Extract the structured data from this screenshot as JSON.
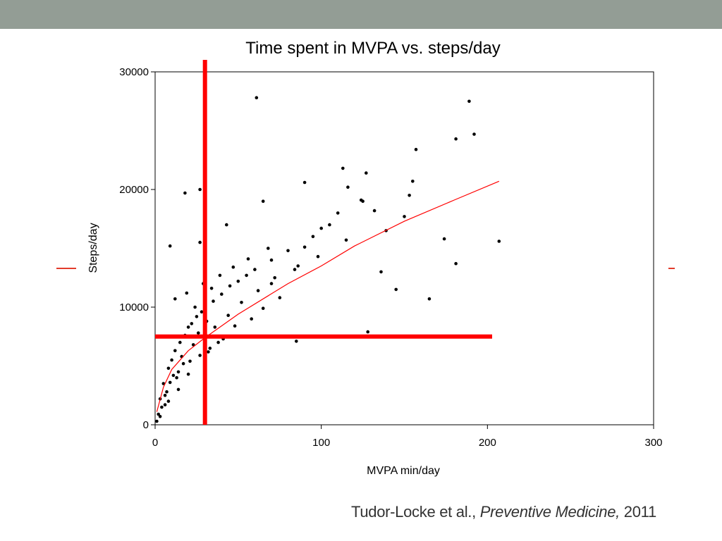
{
  "slide": {
    "colors": {
      "header_bar": "#939d95",
      "accent_line": "#e23c2c"
    },
    "citation": {
      "authors": "Tudor-Locke et al.,",
      "journal": "Preventive Medicine,",
      "year": "2011"
    }
  },
  "chart_data": {
    "type": "scatter",
    "title": "Time spent in MVPA vs. steps/day",
    "xlabel": "MVPA min/day",
    "ylabel": "Steps/day",
    "xlim": [
      0,
      300
    ],
    "ylim": [
      0,
      30000
    ],
    "x_ticks": [
      "0",
      "100",
      "200",
      "300"
    ],
    "y_ticks": [
      "0",
      "10000",
      "20000",
      "30000"
    ],
    "grid": false,
    "legend": "none",
    "colors": {
      "points": "#000000",
      "fit_curve": "#ff0000",
      "reference_lines": "#ff0000"
    },
    "reference_lines": {
      "x": 30,
      "y": 7500
    },
    "fit_curve": {
      "x": [
        1,
        5,
        10,
        20,
        30,
        50,
        80,
        100,
        120,
        150,
        180,
        207
      ],
      "y": [
        1100,
        3200,
        4700,
        6300,
        7400,
        9400,
        12000,
        13500,
        15200,
        17300,
        19100,
        20700
      ]
    },
    "points": {
      "x": [
        27,
        61,
        189,
        192,
        157,
        181,
        113,
        127,
        90,
        116,
        18,
        27,
        115,
        124,
        125,
        132,
        65,
        43,
        150,
        153,
        155,
        139,
        174,
        181,
        207,
        9,
        86,
        145,
        165,
        136,
        70,
        85,
        128,
        3,
        5,
        8,
        10,
        12,
        15,
        18,
        20,
        22,
        25,
        28,
        30,
        35,
        40,
        45,
        50,
        55,
        60,
        70,
        80,
        90,
        95,
        100,
        105,
        110,
        4,
        7,
        11,
        14,
        17,
        23,
        33,
        38,
        42,
        48,
        58,
        65,
        75,
        2,
        6,
        9,
        13,
        16,
        21,
        26,
        31,
        36,
        44,
        52,
        62,
        72,
        84,
        98,
        12,
        19,
        24,
        29,
        34,
        39,
        47,
        56,
        68,
        1,
        3,
        6,
        8,
        14,
        20,
        27,
        32,
        41
      ],
      "y": [
        20000,
        27800,
        27500,
        24700,
        23400,
        24300,
        21800,
        21400,
        20600,
        20200,
        19700,
        15500,
        15700,
        19100,
        19000,
        18200,
        19000,
        17000,
        17700,
        19500,
        20700,
        16500,
        15800,
        13700,
        15600,
        15200,
        13500,
        11500,
        10700,
        13000,
        12000,
        7100,
        7900,
        2200,
        3500,
        4800,
        5500,
        6300,
        7000,
        7600,
        8300,
        8600,
        9200,
        9600,
        9700,
        10500,
        11100,
        11800,
        12200,
        12700,
        13200,
        14000,
        14800,
        15100,
        16000,
        16700,
        17000,
        18000,
        1500,
        2800,
        4200,
        4500,
        5200,
        6800,
        6500,
        7000,
        7500,
        8400,
        9000,
        9900,
        10800,
        900,
        2500,
        3600,
        4000,
        5800,
        5400,
        7800,
        8800,
        8300,
        9300,
        10400,
        11400,
        12500,
        13200,
        14300,
        10700,
        11200,
        10000,
        12000,
        11600,
        12700,
        13400,
        14100,
        15000,
        300,
        700,
        1700,
        2000,
        3000,
        4300,
        5900,
        6200,
        7300
      ]
    }
  }
}
